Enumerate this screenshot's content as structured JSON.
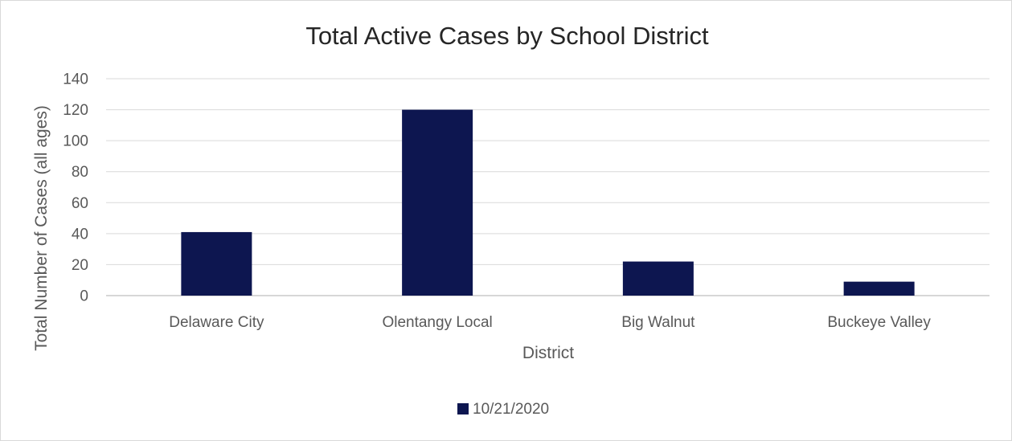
{
  "chart_data": {
    "type": "bar",
    "title": "Total Active Cases by School District",
    "xlabel": "District",
    "ylabel": "Total Number of Cases (all ages)",
    "categories": [
      "Delaware City",
      "Olentangy Local",
      "Big Walnut",
      "Buckeye Valley"
    ],
    "series": [
      {
        "name": "10/21/2020",
        "values": [
          41,
          120,
          22,
          9
        ],
        "color": "#0d1650"
      }
    ],
    "ylim": [
      0,
      140
    ],
    "yticks": [
      "0",
      "20",
      "40",
      "60",
      "80",
      "100",
      "120",
      "140"
    ],
    "grid": true,
    "legend_position": "bottom"
  }
}
